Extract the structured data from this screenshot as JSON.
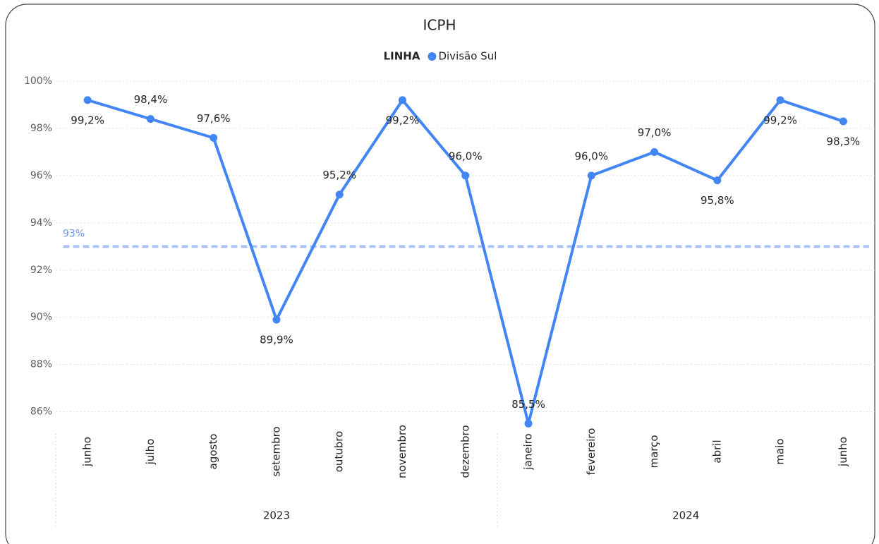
{
  "chart_data": {
    "type": "line",
    "title": "ICPH",
    "legend_title": "LINHA",
    "legend_position": "top",
    "categories": [
      "junho",
      "julho",
      "agosto",
      "setembro",
      "outubro",
      "novembro",
      "dezembro",
      "janeiro",
      "fevereiro",
      "março",
      "abril",
      "maio",
      "junho"
    ],
    "category_groups": [
      {
        "label": "2023",
        "size": 7
      },
      {
        "label": "2024",
        "size": 6
      }
    ],
    "series": [
      {
        "name": "Divisão Sul",
        "color": "#4285f4",
        "values": [
          99.2,
          98.4,
          97.6,
          89.9,
          95.2,
          99.2,
          96.0,
          85.5,
          96.0,
          97.0,
          95.8,
          99.2,
          98.3
        ],
        "value_labels": [
          "99,2%",
          "98,4%",
          "97,6%",
          "89,9%",
          "95,2%",
          "99,2%",
          "96,0%",
          "85,5%",
          "96,0%",
          "97,0%",
          "95,8%",
          "99,2%",
          "98,3%"
        ]
      }
    ],
    "reference_line": {
      "value": 93,
      "label": "93%",
      "color": "#a9c5f7"
    },
    "ylim": [
      85.3,
      100.45
    ],
    "yticks": [
      {
        "value": 86,
        "label": "86%"
      },
      {
        "value": 88,
        "label": "88%"
      },
      {
        "value": 90,
        "label": "90%"
      },
      {
        "value": 92,
        "label": "92%"
      },
      {
        "value": 94,
        "label": "94%"
      },
      {
        "value": 96,
        "label": "96%"
      },
      {
        "value": 98,
        "label": "98%"
      },
      {
        "value": 100,
        "label": "100%"
      }
    ],
    "grid": true
  }
}
